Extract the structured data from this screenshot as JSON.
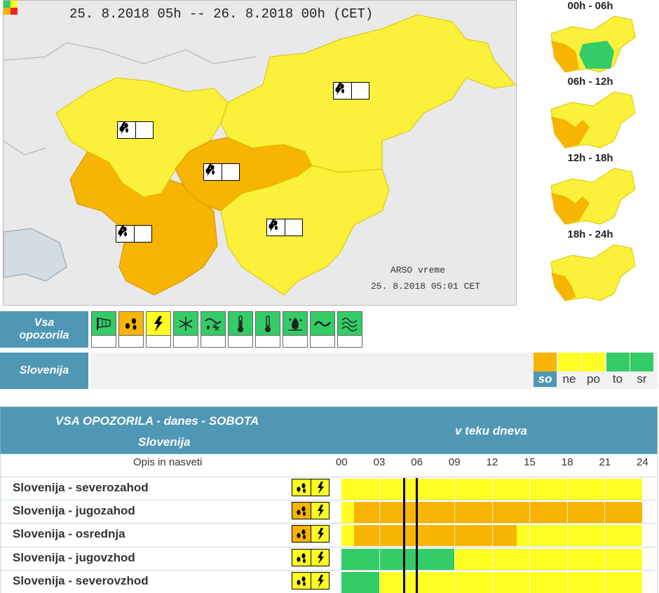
{
  "colors": {
    "orange": "#f7b400",
    "yellow": "#ffff22",
    "green": "#33cc66",
    "red": "#ee2222",
    "blue_header": "#4f97b5"
  },
  "map": {
    "title": "25. 8.2018  05h  --  26. 8.2018  00h    (CET)",
    "credit_line1": "ARSO vreme",
    "credit_line2": "25. 8.2018  05:01 CET",
    "region_icons": [
      "rain-icon",
      "lightning-icon"
    ]
  },
  "side_panels": [
    {
      "label": "00h - 06h"
    },
    {
      "label": "06h - 12h"
    },
    {
      "label": "12h - 18h"
    },
    {
      "label": "18h - 24h"
    }
  ],
  "warning_types": {
    "header": "Vsa opozorila",
    "icons": [
      {
        "name": "wind-icon",
        "color": "green"
      },
      {
        "name": "rain-icon",
        "color": "orange"
      },
      {
        "name": "lightning-icon",
        "color": "yellow"
      },
      {
        "name": "snow-icon",
        "color": "green"
      },
      {
        "name": "snow-rain-icon",
        "color": "green"
      },
      {
        "name": "high-temperature-icon",
        "color": "green"
      },
      {
        "name": "low-temperature-icon",
        "color": "green"
      },
      {
        "name": "fire-icon",
        "color": "green"
      },
      {
        "name": "coastal-icon",
        "color": "green"
      },
      {
        "name": "fog-icon",
        "color": "green"
      }
    ]
  },
  "region_bar": {
    "label": "Slovenija",
    "days": [
      {
        "label": "so",
        "color": "orange",
        "selected": true
      },
      {
        "label": "ne",
        "color": "yellow",
        "selected": false
      },
      {
        "label": "po",
        "color": "yellow",
        "selected": false
      },
      {
        "label": "to",
        "color": "green",
        "selected": false
      },
      {
        "label": "sr",
        "color": "green",
        "selected": false
      }
    ]
  },
  "table": {
    "title": "VSA OPOZORILA - danes - SOBOTA",
    "subtitle": "Slovenija",
    "right_title": "v teku dneva",
    "column_label": "Opis in nasveti",
    "hours": [
      "00",
      "03",
      "06",
      "09",
      "12",
      "15",
      "18",
      "21",
      "24"
    ],
    "rows": [
      {
        "label": "Slovenija - severozahod",
        "segments": [
          [
            0,
            24,
            "yellow"
          ]
        ]
      },
      {
        "label": "Slovenija - jugozahod",
        "segments": [
          [
            0,
            1,
            "yellow"
          ],
          [
            1,
            24,
            "orange"
          ]
        ]
      },
      {
        "label": "Slovenija - osrednja",
        "segments": [
          [
            0,
            1,
            "yellow"
          ],
          [
            1,
            14,
            "orange"
          ],
          [
            14,
            24,
            "yellow"
          ]
        ]
      },
      {
        "label": "Slovenija - jugovzhod",
        "segments": [
          [
            0,
            9,
            "green"
          ],
          [
            9,
            24,
            "yellow"
          ]
        ]
      },
      {
        "label": "Slovenija - severovzhod",
        "segments": [
          [
            0,
            3,
            "green"
          ],
          [
            3,
            24,
            "yellow"
          ]
        ]
      }
    ],
    "current_time_markers": [
      5,
      6
    ]
  }
}
